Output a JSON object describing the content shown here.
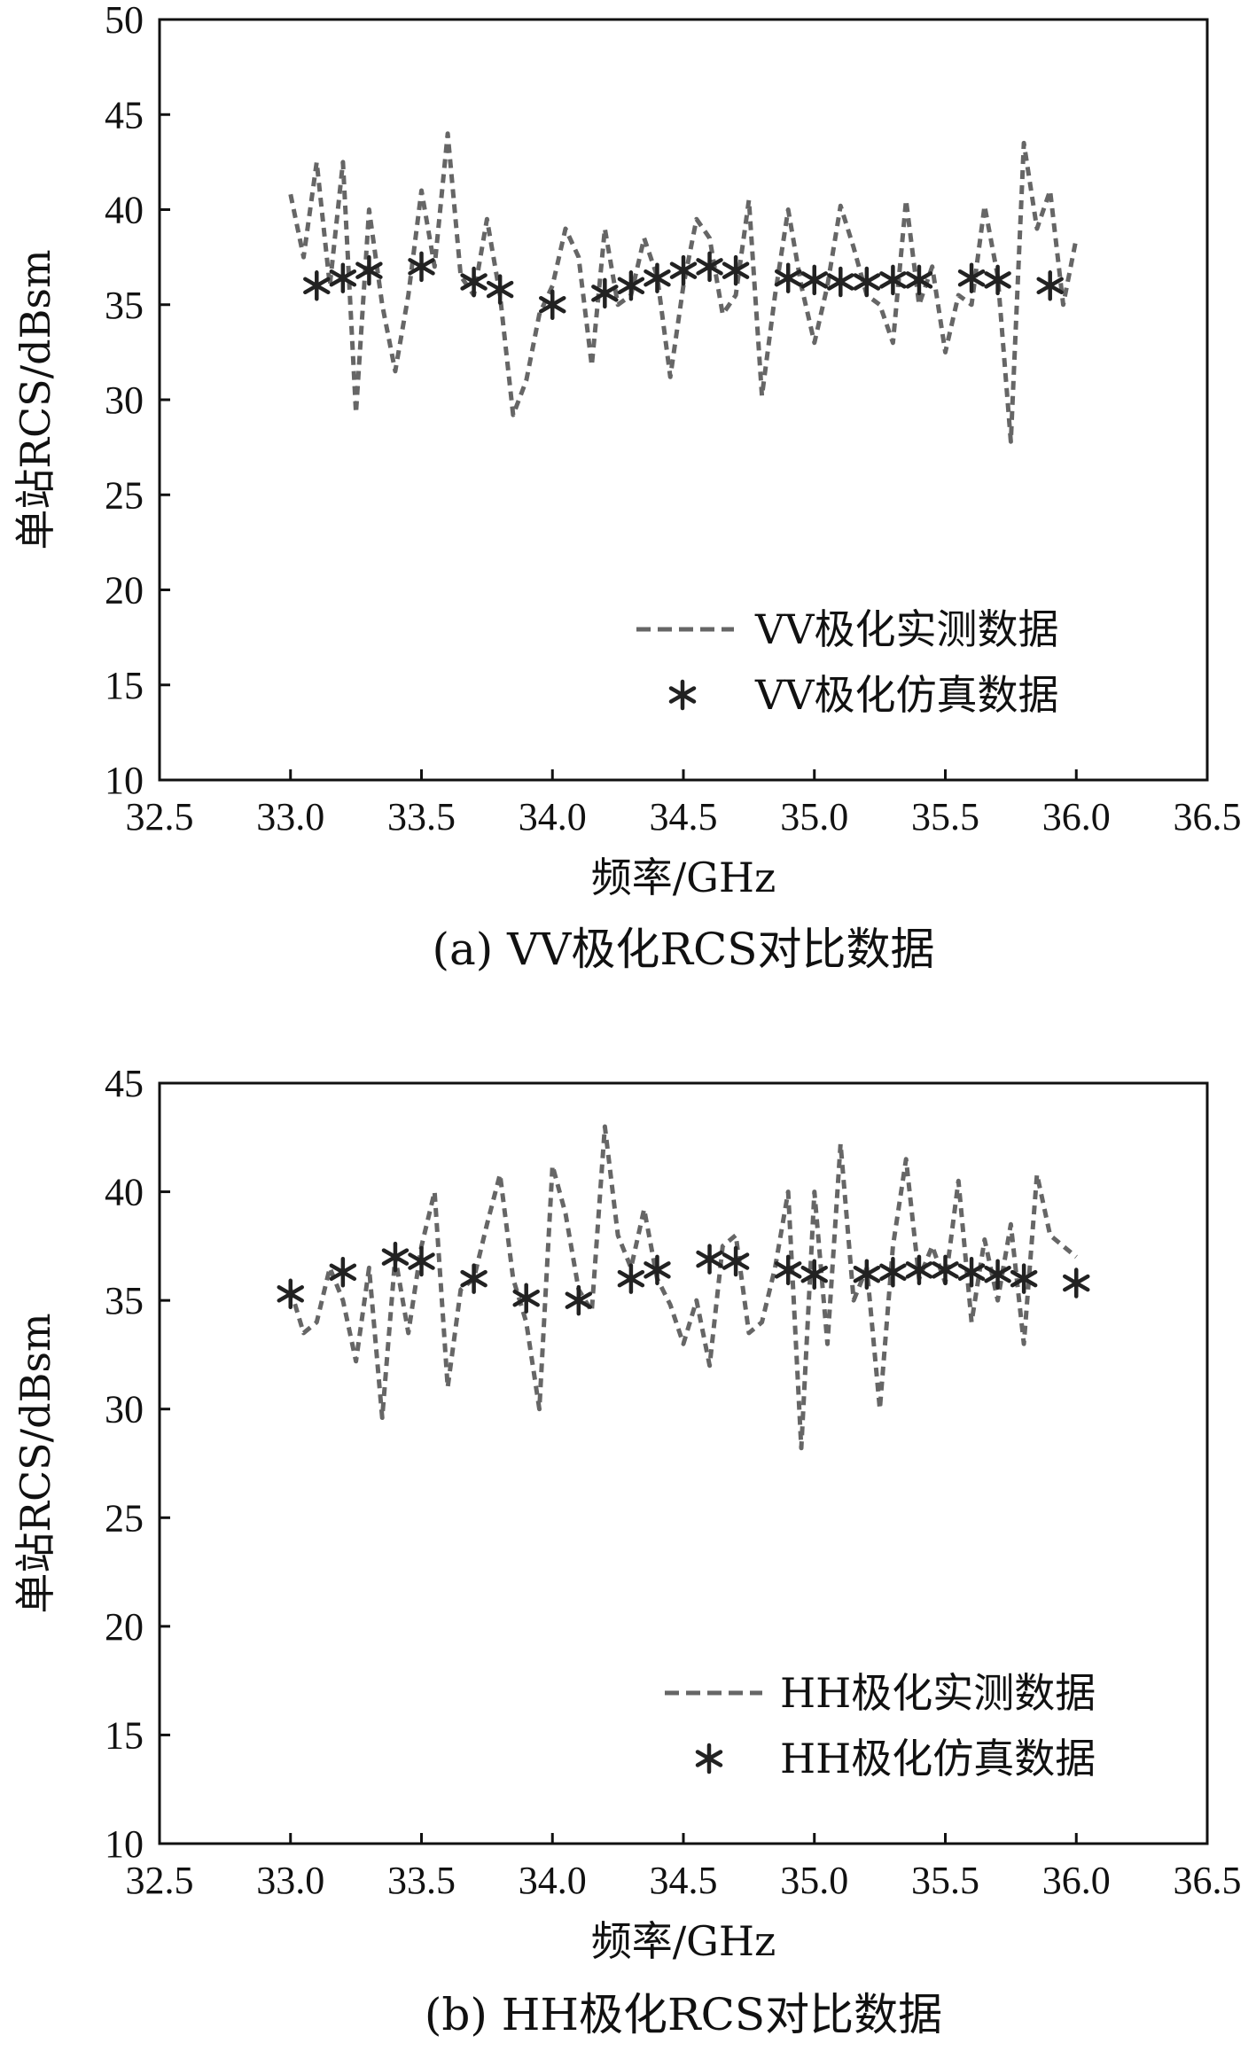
{
  "chart_data": [
    {
      "type": "line",
      "caption": "(a) VV极化RCS对比数据",
      "xlabel": "频率/GHz",
      "ylabel": "单站RCS/dBsm",
      "xlim": [
        32.5,
        36.5
      ],
      "ylim": [
        10,
        50
      ],
      "xticks": [
        "32.5",
        "33.0",
        "33.5",
        "34.0",
        "34.5",
        "35.0",
        "35.5",
        "36.0",
        "36.5"
      ],
      "yticks": [
        "10",
        "15",
        "20",
        "25",
        "30",
        "35",
        "40",
        "45",
        "50"
      ],
      "legend_position": "bottom-right",
      "grid": false,
      "series": [
        {
          "name": "VV极化实测数据",
          "style": "dashed",
          "color": "#666666",
          "x": [
            33.0,
            33.05,
            33.1,
            33.15,
            33.2,
            33.25,
            33.3,
            33.35,
            33.4,
            33.45,
            33.5,
            33.55,
            33.6,
            33.65,
            33.7,
            33.75,
            33.8,
            33.85,
            33.9,
            33.95,
            34.0,
            34.05,
            34.1,
            34.15,
            34.2,
            34.25,
            34.3,
            34.35,
            34.4,
            34.45,
            34.5,
            34.55,
            34.6,
            34.65,
            34.7,
            34.75,
            34.8,
            34.85,
            34.9,
            34.95,
            35.0,
            35.05,
            35.1,
            35.15,
            35.2,
            35.25,
            35.3,
            35.35,
            35.4,
            35.45,
            35.5,
            35.55,
            35.6,
            35.65,
            35.7,
            35.75,
            35.8,
            35.85,
            35.9,
            35.95,
            36.0
          ],
          "y": [
            40.8,
            37.5,
            42.5,
            36.0,
            42.5,
            29.3,
            40.0,
            35.0,
            31.5,
            35.5,
            41.0,
            37.0,
            44.0,
            36.5,
            35.5,
            39.5,
            35.5,
            29.2,
            31.0,
            34.5,
            36.0,
            39.0,
            37.5,
            31.8,
            39.0,
            35.0,
            35.5,
            38.5,
            36.5,
            31.2,
            36.0,
            39.5,
            38.5,
            34.5,
            35.5,
            40.5,
            30.2,
            35.5,
            40.0,
            36.0,
            33.0,
            36.0,
            40.2,
            38.0,
            35.5,
            35.0,
            33.0,
            40.5,
            35.0,
            37.0,
            32.5,
            35.5,
            35.0,
            40.2,
            36.5,
            27.8,
            43.5,
            39.0,
            41.0,
            35.0,
            38.5
          ]
        },
        {
          "name": "VV极化仿真数据",
          "style": "asterisk",
          "color": "#222222",
          "x": [
            33.1,
            33.2,
            33.3,
            33.5,
            33.7,
            33.8,
            34.0,
            34.2,
            34.3,
            34.4,
            34.5,
            34.6,
            34.7,
            34.9,
            35.0,
            35.1,
            35.2,
            35.3,
            35.4,
            35.6,
            35.7,
            35.9
          ],
          "y": [
            36.0,
            36.4,
            36.8,
            37.0,
            36.2,
            35.8,
            35.0,
            35.6,
            36.0,
            36.4,
            36.8,
            37.0,
            36.8,
            36.4,
            36.3,
            36.2,
            36.2,
            36.3,
            36.3,
            36.4,
            36.3,
            36.0
          ]
        }
      ]
    },
    {
      "type": "line",
      "caption": "(b) HH极化RCS对比数据",
      "xlabel": "频率/GHz",
      "ylabel": "单站RCS/dBsm",
      "xlim": [
        32.5,
        36.5
      ],
      "ylim": [
        10,
        45
      ],
      "xticks": [
        "32.5",
        "33.0",
        "33.5",
        "34.0",
        "34.5",
        "35.0",
        "35.5",
        "36.0",
        "36.5"
      ],
      "yticks": [
        "10",
        "15",
        "20",
        "25",
        "30",
        "35",
        "40",
        "45"
      ],
      "legend_position": "bottom-right",
      "grid": false,
      "series": [
        {
          "name": "HH极化实测数据",
          "style": "dashed",
          "color": "#666666",
          "x": [
            33.0,
            33.05,
            33.1,
            33.15,
            33.2,
            33.25,
            33.3,
            33.35,
            33.4,
            33.45,
            33.5,
            33.55,
            33.6,
            33.65,
            33.7,
            33.75,
            33.8,
            33.85,
            33.9,
            33.95,
            34.0,
            34.05,
            34.1,
            34.15,
            34.2,
            34.25,
            34.3,
            34.35,
            34.4,
            34.45,
            34.5,
            34.55,
            34.6,
            34.65,
            34.7,
            34.75,
            34.8,
            34.85,
            34.9,
            34.95,
            35.0,
            35.05,
            35.1,
            35.15,
            35.2,
            35.25,
            35.3,
            35.35,
            35.4,
            35.45,
            35.5,
            35.55,
            35.6,
            35.65,
            35.7,
            35.75,
            35.8,
            35.85,
            35.9,
            35.95,
            36.0
          ],
          "y": [
            35.5,
            33.5,
            34.0,
            36.5,
            35.0,
            32.2,
            36.5,
            29.6,
            37.0,
            33.5,
            37.5,
            40.0,
            31.0,
            35.5,
            36.0,
            38.5,
            40.8,
            36.0,
            34.0,
            30.0,
            41.2,
            39.0,
            35.5,
            34.5,
            43.0,
            38.0,
            36.5,
            39.2,
            36.0,
            34.8,
            33.0,
            35.0,
            32.0,
            37.5,
            38.0,
            33.5,
            34.0,
            36.5,
            40.0,
            28.2,
            40.0,
            33.0,
            42.2,
            35.0,
            36.5,
            30.0,
            37.5,
            41.5,
            36.0,
            37.5,
            35.8,
            40.5,
            34.0,
            37.8,
            35.0,
            38.5,
            33.0,
            40.8,
            38.0,
            37.5,
            37.0
          ]
        },
        {
          "name": "HH极化仿真数据",
          "style": "asterisk",
          "color": "#222222",
          "x": [
            33.0,
            33.2,
            33.4,
            33.5,
            33.7,
            33.9,
            34.1,
            34.3,
            34.4,
            34.6,
            34.7,
            34.9,
            35.0,
            35.2,
            35.3,
            35.4,
            35.5,
            35.6,
            35.7,
            35.8,
            36.0
          ],
          "y": [
            35.3,
            36.3,
            37.0,
            36.8,
            36.0,
            35.1,
            35.0,
            36.0,
            36.4,
            36.9,
            36.8,
            36.4,
            36.2,
            36.2,
            36.3,
            36.4,
            36.4,
            36.3,
            36.2,
            36.0,
            35.8
          ]
        }
      ]
    }
  ]
}
